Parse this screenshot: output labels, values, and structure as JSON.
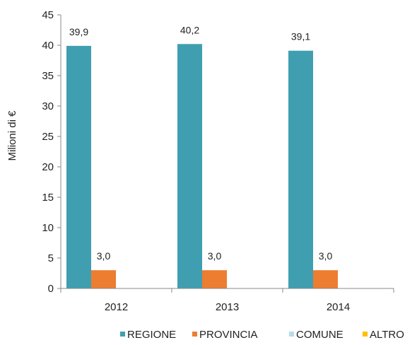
{
  "chart_data": {
    "type": "bar",
    "categories": [
      "2012",
      "2013",
      "2014"
    ],
    "series": [
      {
        "name": "REGIONE",
        "values": [
          39.9,
          40.2,
          39.1
        ],
        "labels": [
          "39,9",
          "40,2",
          "39,1"
        ],
        "color": "#3f9fb0"
      },
      {
        "name": "PROVINCIA",
        "values": [
          3.0,
          3.0,
          3.0
        ],
        "labels": [
          "3,0",
          "3,0",
          "3,0"
        ],
        "color": "#ed7d31"
      },
      {
        "name": "COMUNE",
        "values": [
          0,
          0,
          0
        ],
        "labels": [
          "",
          "",
          ""
        ],
        "color": "#b7dde8"
      },
      {
        "name": "ALTRO",
        "values": [
          0,
          0,
          0
        ],
        "labels": [
          "",
          "",
          ""
        ],
        "color": "#ffc000"
      }
    ],
    "ylabel": "Milioni di €",
    "xlabel": "",
    "ylim": [
      0,
      45
    ],
    "yticks": [
      "0",
      "5",
      "10",
      "15",
      "20",
      "25",
      "30",
      "35",
      "40",
      "45"
    ],
    "grid": false,
    "legend_position": "bottom-right"
  }
}
